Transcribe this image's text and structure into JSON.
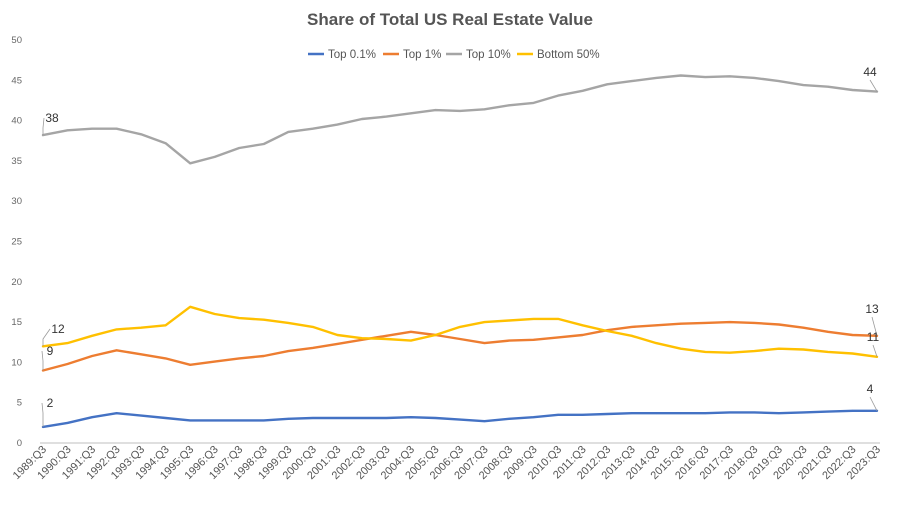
{
  "chart_data": {
    "type": "line",
    "title": "Share of Total US Real Estate Value",
    "ylim": [
      0,
      50
    ],
    "yticks": [
      "0",
      "5",
      "10",
      "15",
      "20",
      "25",
      "30",
      "35",
      "40",
      "45",
      "50"
    ],
    "xlabels": [
      "1989:Q3",
      "1990:Q3",
      "1991:Q3",
      "1992:Q3",
      "1993:Q3",
      "1994:Q3",
      "1995:Q3",
      "1996:Q3",
      "1997:Q3",
      "1998:Q3",
      "1999:Q3",
      "2000:Q3",
      "2001:Q3",
      "2002:Q3",
      "2003:Q3",
      "2004:Q3",
      "2005:Q3",
      "2006:Q3",
      "2007:Q3",
      "2008:Q3",
      "2009:Q3",
      "2010:Q3",
      "2011:Q3",
      "2012:Q3",
      "2013:Q3",
      "2014:Q3",
      "2015:Q3",
      "2016:Q3",
      "2017:Q3",
      "2018:Q3",
      "2019:Q3",
      "2020:Q3",
      "2021:Q3",
      "2022:Q3",
      "2023:Q3"
    ],
    "grid": false,
    "legend_position": "top",
    "series": [
      {
        "name": "Top 0.1%",
        "color": "#4472C4",
        "start_label": "2",
        "end_label": "4",
        "values": [
          2.0,
          2.5,
          3.2,
          3.7,
          3.4,
          3.1,
          2.8,
          2.8,
          2.8,
          2.8,
          3.0,
          3.1,
          3.1,
          3.1,
          3.1,
          3.2,
          3.1,
          2.9,
          2.7,
          3.0,
          3.2,
          3.5,
          3.5,
          3.6,
          3.7,
          3.7,
          3.7,
          3.7,
          3.8,
          3.8,
          3.7,
          3.8,
          3.9,
          4.0,
          4.0
        ]
      },
      {
        "name": "Top 1%",
        "color": "#ED7D31",
        "start_label": "9",
        "end_label": "13",
        "values": [
          9.0,
          9.8,
          10.8,
          11.5,
          11.0,
          10.5,
          9.7,
          10.1,
          10.5,
          10.8,
          11.4,
          11.8,
          12.3,
          12.8,
          13.3,
          13.8,
          13.4,
          12.9,
          12.4,
          12.7,
          12.8,
          13.1,
          13.4,
          14.0,
          14.4,
          14.6,
          14.8,
          14.9,
          15.0,
          14.9,
          14.7,
          14.3,
          13.8,
          13.4,
          13.3
        ]
      },
      {
        "name": "Top 10%",
        "color": "#A5A5A5",
        "start_label": "38",
        "end_label": "44",
        "values": [
          38.2,
          38.8,
          39.0,
          39.0,
          38.3,
          37.2,
          34.7,
          35.5,
          36.6,
          37.1,
          38.6,
          39.0,
          39.5,
          40.2,
          40.5,
          40.9,
          41.3,
          41.2,
          41.4,
          41.9,
          42.2,
          43.1,
          43.7,
          44.5,
          44.9,
          45.3,
          45.6,
          45.4,
          45.5,
          45.3,
          44.9,
          44.4,
          44.2,
          43.8,
          43.6
        ]
      },
      {
        "name": "Bottom 50%",
        "color": "#FFC000",
        "start_label": "12",
        "end_label": "11",
        "values": [
          12.0,
          12.4,
          13.3,
          14.1,
          14.3,
          14.6,
          16.9,
          16.0,
          15.5,
          15.3,
          14.9,
          14.4,
          13.4,
          13.0,
          12.9,
          12.7,
          13.4,
          14.4,
          15.0,
          15.2,
          15.4,
          15.4,
          14.6,
          13.9,
          13.3,
          12.4,
          11.7,
          11.3,
          11.2,
          11.4,
          11.7,
          11.6,
          11.3,
          11.1,
          10.7
        ]
      }
    ]
  }
}
